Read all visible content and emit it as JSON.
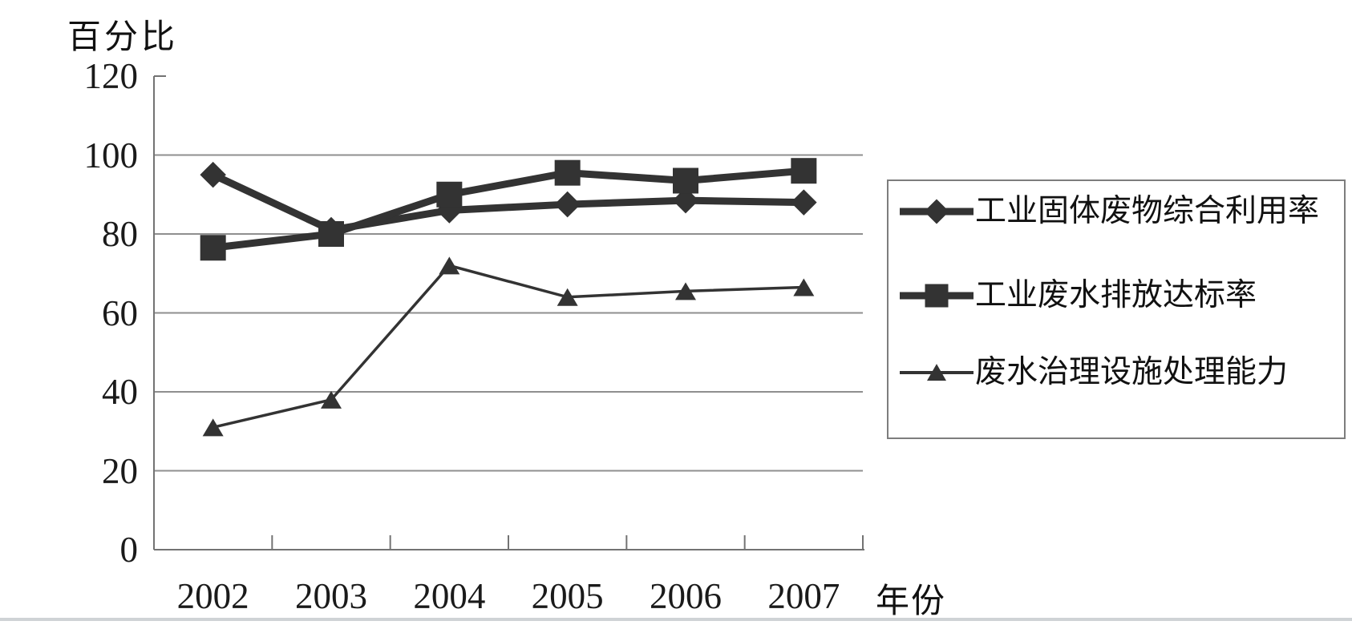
{
  "chart_data": {
    "type": "line",
    "title": "",
    "y_axis_title": "百分比",
    "x_axis_title": "年份",
    "categories": [
      "2002",
      "2003",
      "2004",
      "2005",
      "2006",
      "2007"
    ],
    "series": [
      {
        "name": "工业固体废物综合利用率",
        "marker": "diamond",
        "line_weight": "thick",
        "values": [
          95,
          81,
          86,
          87.5,
          88.5,
          88
        ]
      },
      {
        "name": "工业废水排放达标率",
        "marker": "square",
        "line_weight": "thick",
        "values": [
          76.5,
          80,
          90,
          95.5,
          93.5,
          96
        ]
      },
      {
        "name": "废水治理设施处理能力",
        "marker": "triangle",
        "line_weight": "thin",
        "values": [
          31,
          38,
          72,
          64,
          65.5,
          66.5
        ]
      }
    ],
    "ylim": [
      0,
      120
    ],
    "yticks": [
      0,
      20,
      40,
      60,
      80,
      100,
      120
    ],
    "gridlines": "horizontal",
    "legend_position": "right",
    "colors": {
      "series": "#333333",
      "gridline": "#8f8f8f",
      "axis": "#737373",
      "text": "#1a1a1a"
    }
  }
}
